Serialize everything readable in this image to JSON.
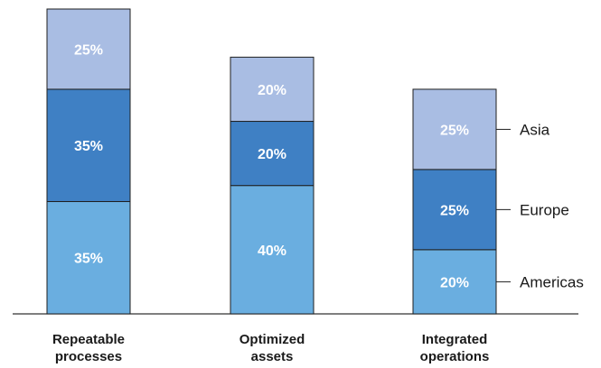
{
  "chart_data": {
    "type": "bar",
    "stacked": true,
    "categories": [
      [
        "Repeatable",
        "processes"
      ],
      [
        "Optimized",
        "assets"
      ],
      [
        "Integrated",
        "operations"
      ]
    ],
    "series": [
      {
        "name": "Americas",
        "values": [
          35,
          40,
          20
        ],
        "labels": [
          "35%",
          "40%",
          "20%"
        ],
        "color": "#6aaee0"
      },
      {
        "name": "Europe",
        "values": [
          35,
          20,
          25
        ],
        "labels": [
          "35%",
          "20%",
          "25%"
        ],
        "color": "#3f80c4"
      },
      {
        "name": "Asia",
        "values": [
          25,
          20,
          25
        ],
        "labels": [
          "25%",
          "20%",
          "25%"
        ],
        "color": "#a9bde3"
      }
    ],
    "ylim": [
      0,
      95
    ],
    "legend_position": "right of last bar, aligned to segments",
    "grid": false,
    "title": "",
    "xlabel": "",
    "ylabel": ""
  }
}
